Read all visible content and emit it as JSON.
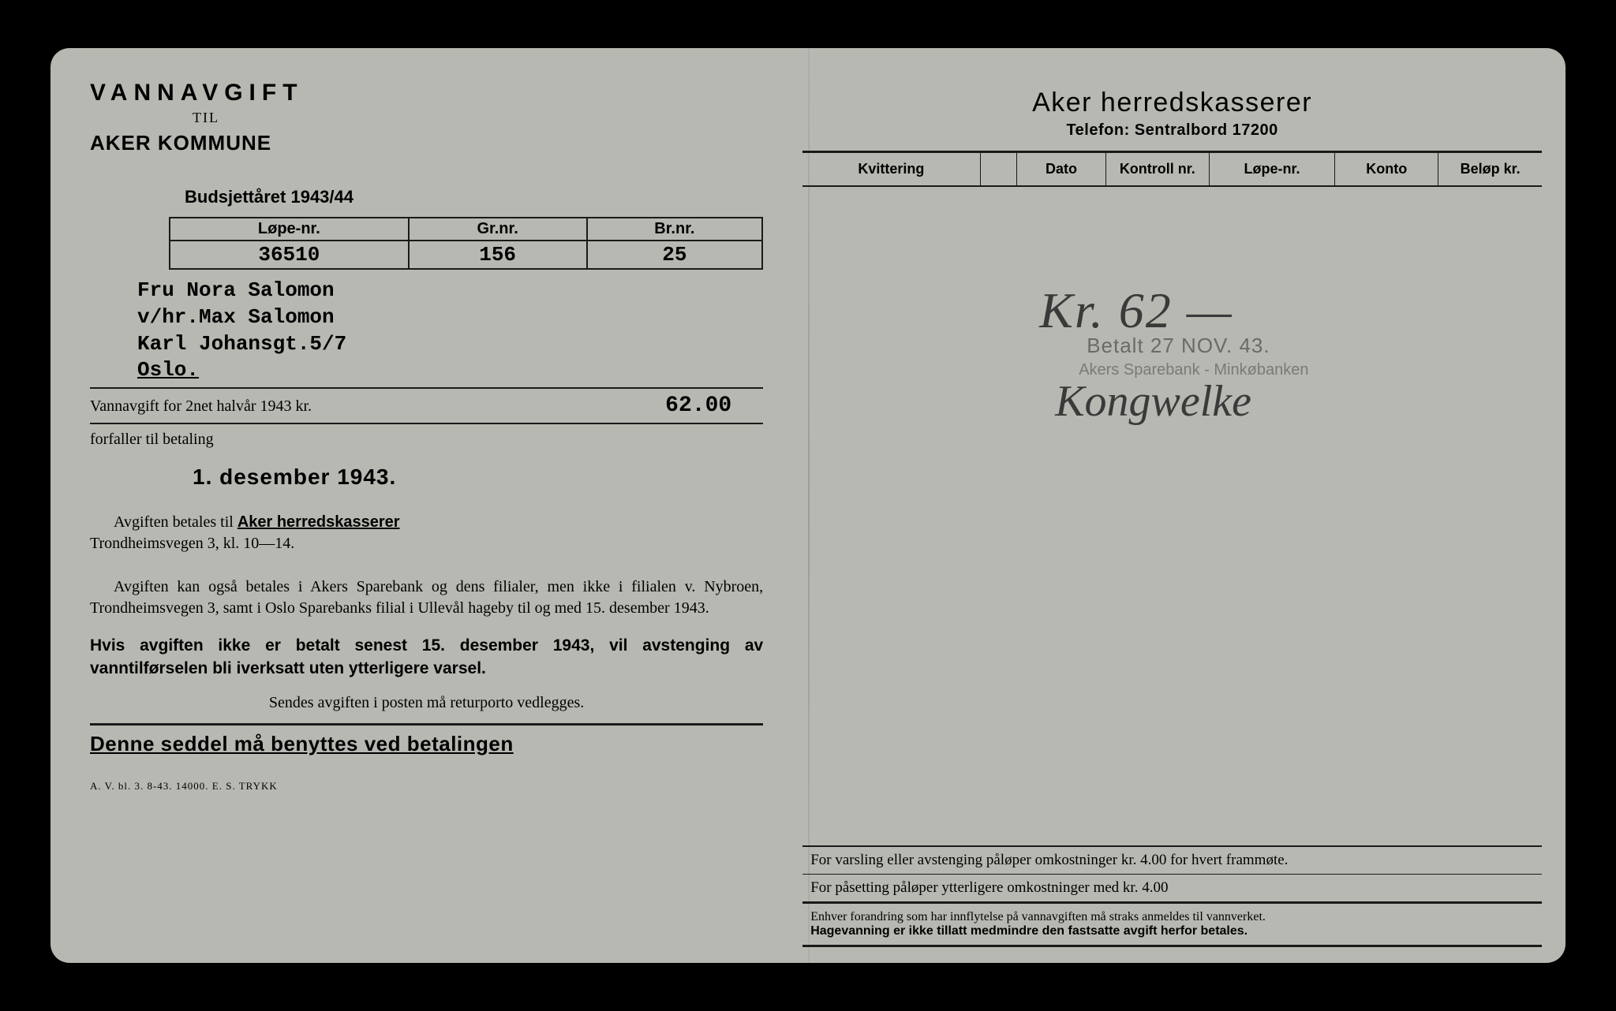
{
  "left": {
    "title": "VANNAVGIFT",
    "til": "TIL",
    "kommune": "AKER KOMMUNE",
    "budget_year": "Budsjettåret 1943/44",
    "id_headers": {
      "lope": "Løpe-nr.",
      "gr": "Gr.nr.",
      "br": "Br.nr."
    },
    "id_values": {
      "lope": "36510",
      "gr": "156",
      "br": "25"
    },
    "recipient": {
      "line1": "Fru Nora Salomon",
      "line2": "v/hr.Max Salomon",
      "line3": "Karl Johansgt.5/7",
      "line4": "Oslo."
    },
    "amount_label": "Vannavgift for 2net halvår 1943 kr.",
    "amount_value": "62.00",
    "forfaller": "forfaller til betaling",
    "due_date": "1. desember 1943.",
    "para1_lead": "Avgiften betales til",
    "para1_bold": "Aker herredskasserer",
    "para1_tail": "Trondheimsvegen 3, kl. 10—14.",
    "para2": "Avgiften kan også betales i Akers Sparebank og dens filialer, men ikke i filialen v. Nybroen, Trondheimsvegen 3, samt i Oslo Sparebanks filial i Ullevål hageby til og med 15. desember 1943.",
    "warning": "Hvis avgiften ikke er betalt senest 15. desember 1943, vil avstenging av vanntilførselen bli iverksatt uten ytterligere varsel.",
    "post_note": "Sendes avgiften i posten må returporto vedlegges.",
    "bottom_bold": "Denne seddel må benyttes ved betalingen",
    "print_mark": "A. V. bl. 3. 8-43. 14000. E. S. TRYKK"
  },
  "right": {
    "title": "Aker herredskasserer",
    "phone": "Telefon: Sentralbord 17200",
    "columns": {
      "kvittering": "Kvittering",
      "blank": "",
      "dato": "Dato",
      "kontroll": "Kontroll nr.",
      "lope": "Løpe-nr.",
      "konto": "Konto",
      "belop": "Beløp kr."
    },
    "column_widths_pct": [
      24,
      5,
      12,
      14,
      17,
      14,
      14
    ],
    "stamp": {
      "handwritten_amount": "Kr. 62 —",
      "date_line": "Betalt 27 NOV. 43.",
      "bank_line": "Akers Sparebank - Minkøbanken",
      "signature": "Kongwelke"
    },
    "footer": {
      "line1": "For varsling eller avstenging påløper omkostninger kr. 4.00 for hvert frammøte.",
      "line2": "For påsetting påløper ytterligere omkostninger med kr. 4.00",
      "final_a": "Enhver forandring som har innflytelse på vannavgiften må straks anmeldes til vannverket.",
      "final_b": "Hagevanning er ikke tillatt medmindre den fastsatte avgift herfor betales."
    }
  },
  "colors": {
    "paper": "#b8b8b2",
    "ink": "#1a1a1a",
    "stamp_faded": "#6a6a66",
    "page_bg": "#000000"
  }
}
